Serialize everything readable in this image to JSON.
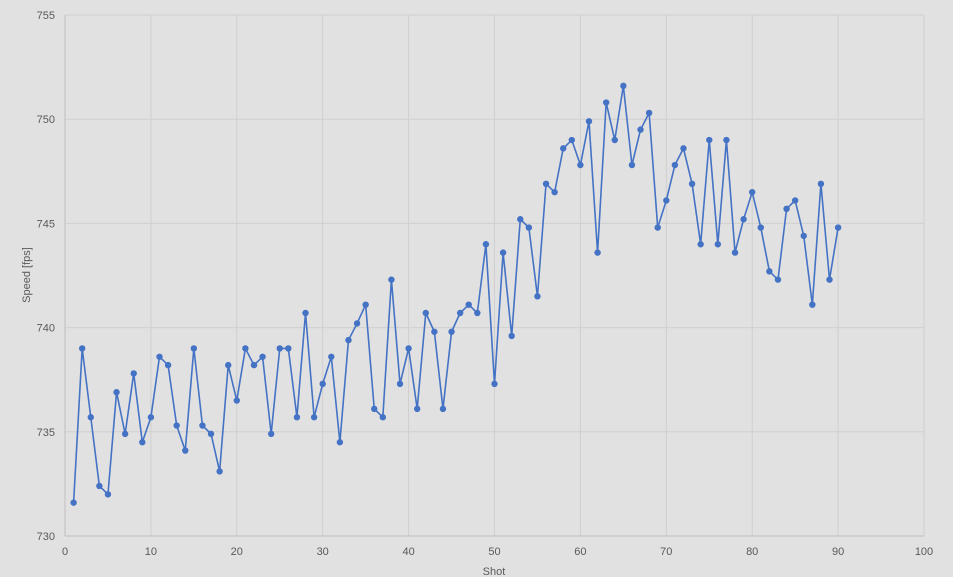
{
  "chart_data": {
    "type": "line",
    "title": "",
    "xlabel": "Shot",
    "ylabel": "Speed [fps]",
    "xlim": [
      0,
      100
    ],
    "ylim": [
      730,
      755
    ],
    "x_ticks": [
      0,
      10,
      20,
      30,
      40,
      50,
      60,
      70,
      80,
      90,
      100
    ],
    "y_ticks": [
      730,
      735,
      740,
      745,
      750,
      755
    ],
    "grid": true,
    "legend": "none",
    "colors": {
      "series": "#4472c4",
      "grid": "#cfcfcf",
      "axis": "#bfbfbf",
      "background": "#e1e1e1"
    },
    "series": [
      {
        "x": [
          1,
          2,
          3,
          4,
          5,
          6,
          7,
          8,
          9,
          10,
          11,
          12,
          13,
          14,
          15,
          16,
          17,
          18,
          19,
          20,
          21,
          22,
          23,
          24,
          25,
          26,
          27,
          28,
          29,
          30,
          31,
          32,
          33,
          34,
          35,
          36,
          37,
          38,
          39,
          40,
          41,
          42,
          43,
          44,
          45,
          46,
          47,
          48,
          49,
          50,
          51,
          52,
          53,
          54,
          55,
          56,
          57,
          58,
          59,
          60,
          61,
          62,
          63,
          64,
          65,
          66,
          67,
          68,
          69,
          70,
          71,
          72,
          73,
          74,
          75,
          76,
          77,
          78,
          79,
          80,
          81,
          82,
          83,
          84,
          85,
          86,
          87,
          88,
          89,
          90
        ],
        "y": [
          731.6,
          739.0,
          735.7,
          732.4,
          732.0,
          736.9,
          734.9,
          737.8,
          734.5,
          735.7,
          738.6,
          738.2,
          735.3,
          734.1,
          739.0,
          735.3,
          734.9,
          733.1,
          738.2,
          736.5,
          739.0,
          738.2,
          738.6,
          734.9,
          739.0,
          739.0,
          735.7,
          740.7,
          735.7,
          737.3,
          738.6,
          734.5,
          739.4,
          740.2,
          741.1,
          736.1,
          735.7,
          742.3,
          737.3,
          739.0,
          736.1,
          740.7,
          739.8,
          736.1,
          739.8,
          740.7,
          741.1,
          740.7,
          744.0,
          737.3,
          743.6,
          739.6,
          745.2,
          744.8,
          741.5,
          746.9,
          746.5,
          748.6,
          749.0,
          747.8,
          749.9,
          743.6,
          750.8,
          749.0,
          751.6,
          747.8,
          749.5,
          750.3,
          744.8,
          746.1,
          747.8,
          748.6,
          746.9,
          744.0,
          749.0,
          744.0,
          749.0,
          743.6,
          745.2,
          746.5,
          744.8,
          742.7,
          742.3,
          745.7,
          746.1,
          744.4,
          741.1,
          746.9,
          742.3,
          744.8
        ]
      }
    ]
  }
}
